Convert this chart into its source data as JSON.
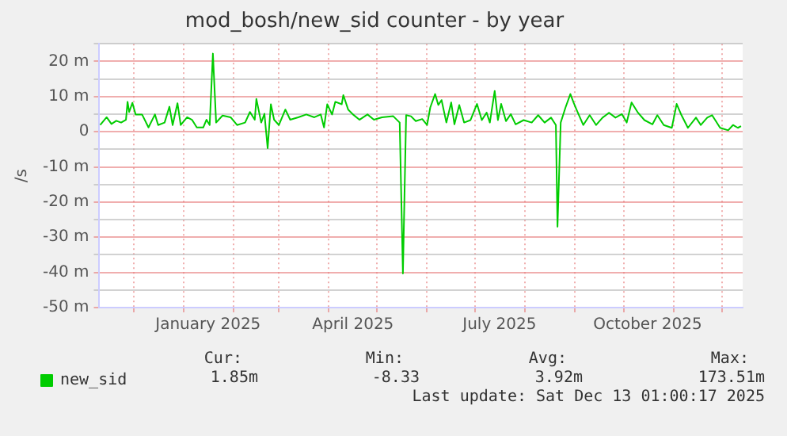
{
  "chart_data": {
    "type": "line",
    "title": "mod_bosh/new_sid counter - by year",
    "ylabel": "/s",
    "x": [
      "2024-11-10",
      "2024-11-14",
      "2024-11-17",
      "2024-11-20",
      "2024-11-23",
      "2024-11-26",
      "2024-11-27",
      "2024-11-28",
      "2024-11-30",
      "2024-12-02",
      "2024-12-06",
      "2024-12-10",
      "2024-12-14",
      "2024-12-16",
      "2024-12-20",
      "2024-12-23",
      "2024-12-25",
      "2024-12-28",
      "2024-12-30",
      "2025-01-03",
      "2025-01-06",
      "2025-01-09",
      "2025-01-13",
      "2025-01-15",
      "2025-01-17",
      "2025-01-19",
      "2025-01-21",
      "2025-01-25",
      "2025-01-30",
      "2025-02-03",
      "2025-02-08",
      "2025-02-11",
      "2025-02-14",
      "2025-02-15",
      "2025-02-18",
      "2025-02-20",
      "2025-02-22",
      "2025-02-24",
      "2025-02-26",
      "2025-03-01",
      "2025-03-05",
      "2025-03-08",
      "2025-03-13",
      "2025-03-18",
      "2025-03-23",
      "2025-03-27",
      "2025-03-29",
      "2025-03-31",
      "2025-04-03",
      "2025-04-05",
      "2025-04-09",
      "2025-04-10",
      "2025-04-13",
      "2025-04-16",
      "2025-04-20",
      "2025-04-25",
      "2025-04-29",
      "2025-05-04",
      "2025-05-11",
      "2025-05-15",
      "2025-05-17",
      "2025-05-19",
      "2025-05-22",
      "2025-05-25",
      "2025-05-29",
      "2025-06-01",
      "2025-06-03",
      "2025-06-06",
      "2025-06-08",
      "2025-06-10",
      "2025-06-13",
      "2025-06-16",
      "2025-06-18",
      "2025-06-21",
      "2025-06-24",
      "2025-06-28",
      "2025-07-02",
      "2025-07-05",
      "2025-07-08",
      "2025-07-10",
      "2025-07-13",
      "2025-07-15",
      "2025-07-17",
      "2025-07-20",
      "2025-07-23",
      "2025-07-26",
      "2025-07-31",
      "2025-08-05",
      "2025-08-09",
      "2025-08-13",
      "2025-08-17",
      "2025-08-20",
      "2025-08-21",
      "2025-08-23",
      "2025-08-26",
      "2025-08-29",
      "2025-08-31",
      "2025-09-02",
      "2025-09-06",
      "2025-09-10",
      "2025-09-14",
      "2025-09-18",
      "2025-09-22",
      "2025-09-26",
      "2025-09-30",
      "2025-10-03",
      "2025-10-06",
      "2025-10-10",
      "2025-10-14",
      "2025-10-19",
      "2025-10-22",
      "2025-10-26",
      "2025-10-31",
      "2025-11-03",
      "2025-11-06",
      "2025-11-10",
      "2025-11-15",
      "2025-11-18",
      "2025-11-22",
      "2025-11-25",
      "2025-11-30",
      "2025-12-05",
      "2025-12-08",
      "2025-12-11",
      "2025-12-13"
    ],
    "series": [
      {
        "name": "new_sid",
        "color": "#00cc00",
        "values": [
          1.9,
          4.1,
          2.2,
          3.1,
          2.6,
          3.4,
          8.5,
          5.6,
          8.2,
          4.9,
          4.9,
          1.2,
          4.9,
          1.9,
          2.6,
          7.1,
          1.9,
          8.1,
          1.9,
          4.1,
          3.4,
          1.2,
          1.2,
          3.4,
          1.9,
          22.2,
          2.6,
          4.6,
          4.1,
          1.9,
          2.6,
          5.6,
          3.4,
          9.3,
          2.6,
          5.1,
          -4.7,
          7.8,
          3.4,
          1.9,
          6.3,
          3.4,
          4.1,
          4.9,
          4.1,
          4.9,
          1.2,
          7.8,
          4.9,
          8.5,
          7.8,
          10.4,
          6.3,
          4.9,
          3.4,
          4.9,
          3.4,
          4.1,
          4.4,
          2.6,
          -40.3,
          4.7,
          4.4,
          3.0,
          3.6,
          1.9,
          6.9,
          10.7,
          7.6,
          9.0,
          2.6,
          8.3,
          2.1,
          7.6,
          2.6,
          3.3,
          7.9,
          3.3,
          5.4,
          2.6,
          11.6,
          3.3,
          7.9,
          3.0,
          5.0,
          2.1,
          3.3,
          2.6,
          4.7,
          2.6,
          4.0,
          1.9,
          -27.0,
          2.6,
          6.9,
          10.7,
          8.3,
          6.1,
          1.9,
          4.7,
          1.9,
          4.0,
          5.4,
          4.0,
          5.0,
          2.6,
          8.3,
          5.4,
          3.3,
          2.1,
          4.7,
          1.9,
          1.1,
          7.9,
          4.7,
          1.1,
          4.0,
          1.9,
          4.0,
          4.7,
          1.1,
          0.4,
          1.9,
          1.1,
          1.6
        ]
      }
    ],
    "xlim": [
      "2024-11-09",
      "2025-12-14"
    ],
    "xticks": [
      {
        "value": "2024-12-01",
        "label": null
      },
      {
        "value": "2025-01-01",
        "label": null
      },
      {
        "value": "2025-01-16",
        "label": "January 2025"
      },
      {
        "value": "2025-02-01",
        "label": null
      },
      {
        "value": "2025-03-01",
        "label": null
      },
      {
        "value": "2025-04-01",
        "label": null
      },
      {
        "value": "2025-04-16",
        "label": "April 2025"
      },
      {
        "value": "2025-05-01",
        "label": null
      },
      {
        "value": "2025-06-01",
        "label": null
      },
      {
        "value": "2025-07-01",
        "label": null
      },
      {
        "value": "2025-07-16",
        "label": "July 2025"
      },
      {
        "value": "2025-08-01",
        "label": null
      },
      {
        "value": "2025-09-01",
        "label": null
      },
      {
        "value": "2025-10-01",
        "label": null
      },
      {
        "value": "2025-10-16",
        "label": "October 2025"
      },
      {
        "value": "2025-11-01",
        "label": null
      },
      {
        "value": "2025-12-01",
        "label": null
      }
    ],
    "ylim": [
      -50,
      25
    ],
    "yticks": [
      {
        "value": -50,
        "label": "-50 m"
      },
      {
        "value": -45,
        "label": null
      },
      {
        "value": -40,
        "label": "-40 m"
      },
      {
        "value": -35,
        "label": null
      },
      {
        "value": -30,
        "label": "-30 m"
      },
      {
        "value": -25,
        "label": null
      },
      {
        "value": -20,
        "label": "-20 m"
      },
      {
        "value": -15,
        "label": null
      },
      {
        "value": -10,
        "label": "-10 m"
      },
      {
        "value": -5,
        "label": null
      },
      0,
      {
        "value": 5,
        "label": null
      },
      {
        "value": 10,
        "label": "10 m"
      },
      {
        "value": 15,
        "label": null
      },
      {
        "value": 20,
        "label": "20 m"
      },
      {
        "value": 25,
        "label": null
      }
    ],
    "grid": true,
    "legend": "bottom left",
    "marker": "none",
    "line_style": "solid",
    "annotations": [
      "Cur:",
      "1.85m",
      "Min:",
      "-8.33",
      "Avg:",
      "3.92m",
      "Max:",
      "173.51m",
      "Last update: Sat Dec 13 01:00:17 2025"
    ]
  }
}
